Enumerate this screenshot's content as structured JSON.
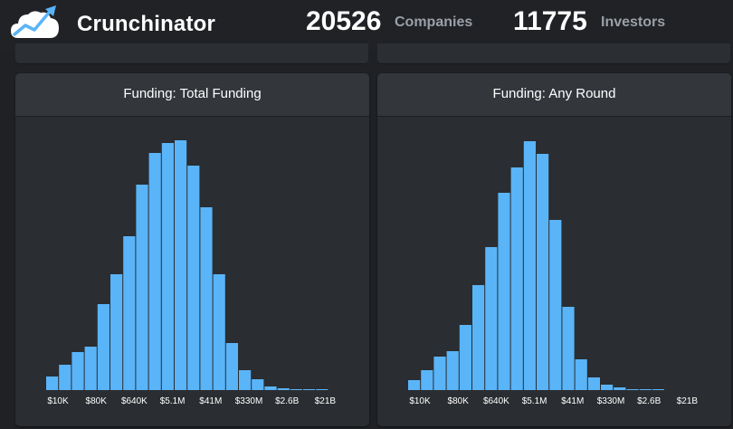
{
  "header": {
    "app_title": "Crunchinator",
    "logo_icon": "cloud-chart-icon",
    "companies_count": "20526",
    "companies_label": "Companies",
    "investors_count": "11775",
    "investors_label": "Investors"
  },
  "colors": {
    "bar": "#5ab4f8",
    "bar_edge": "#2a2d31",
    "panel": "#2a2d31",
    "panel_header": "#33373c",
    "background": "#1f2124"
  },
  "panels": [
    {
      "title": "Funding: Total Funding"
    },
    {
      "title": "Funding: Any Round"
    }
  ],
  "chart_data": [
    {
      "type": "bar",
      "title": "Funding: Total Funding",
      "x_ticks": [
        "$10K",
        "$80K",
        "$640K",
        "$5.1M",
        "$41M",
        "$330M",
        "$2.6B",
        "$21B"
      ],
      "values": [
        15,
        28,
        42,
        48,
        95,
        128,
        170,
        227,
        262,
        273,
        276,
        248,
        202,
        128,
        52,
        22,
        12,
        4,
        2,
        1,
        1,
        1
      ],
      "ylim": [
        0,
        290
      ]
    },
    {
      "type": "bar",
      "title": "Funding: Any Round",
      "x_ticks": [
        "$10K",
        "$80K",
        "$640K",
        "$5.1M",
        "$41M",
        "$330M",
        "$2.6B",
        "$21B"
      ],
      "values": [
        11,
        22,
        37,
        43,
        72,
        116,
        158,
        218,
        246,
        275,
        261,
        188,
        92,
        34,
        14,
        6,
        3,
        1,
        1,
        1
      ],
      "ylim": [
        0,
        290
      ]
    }
  ]
}
